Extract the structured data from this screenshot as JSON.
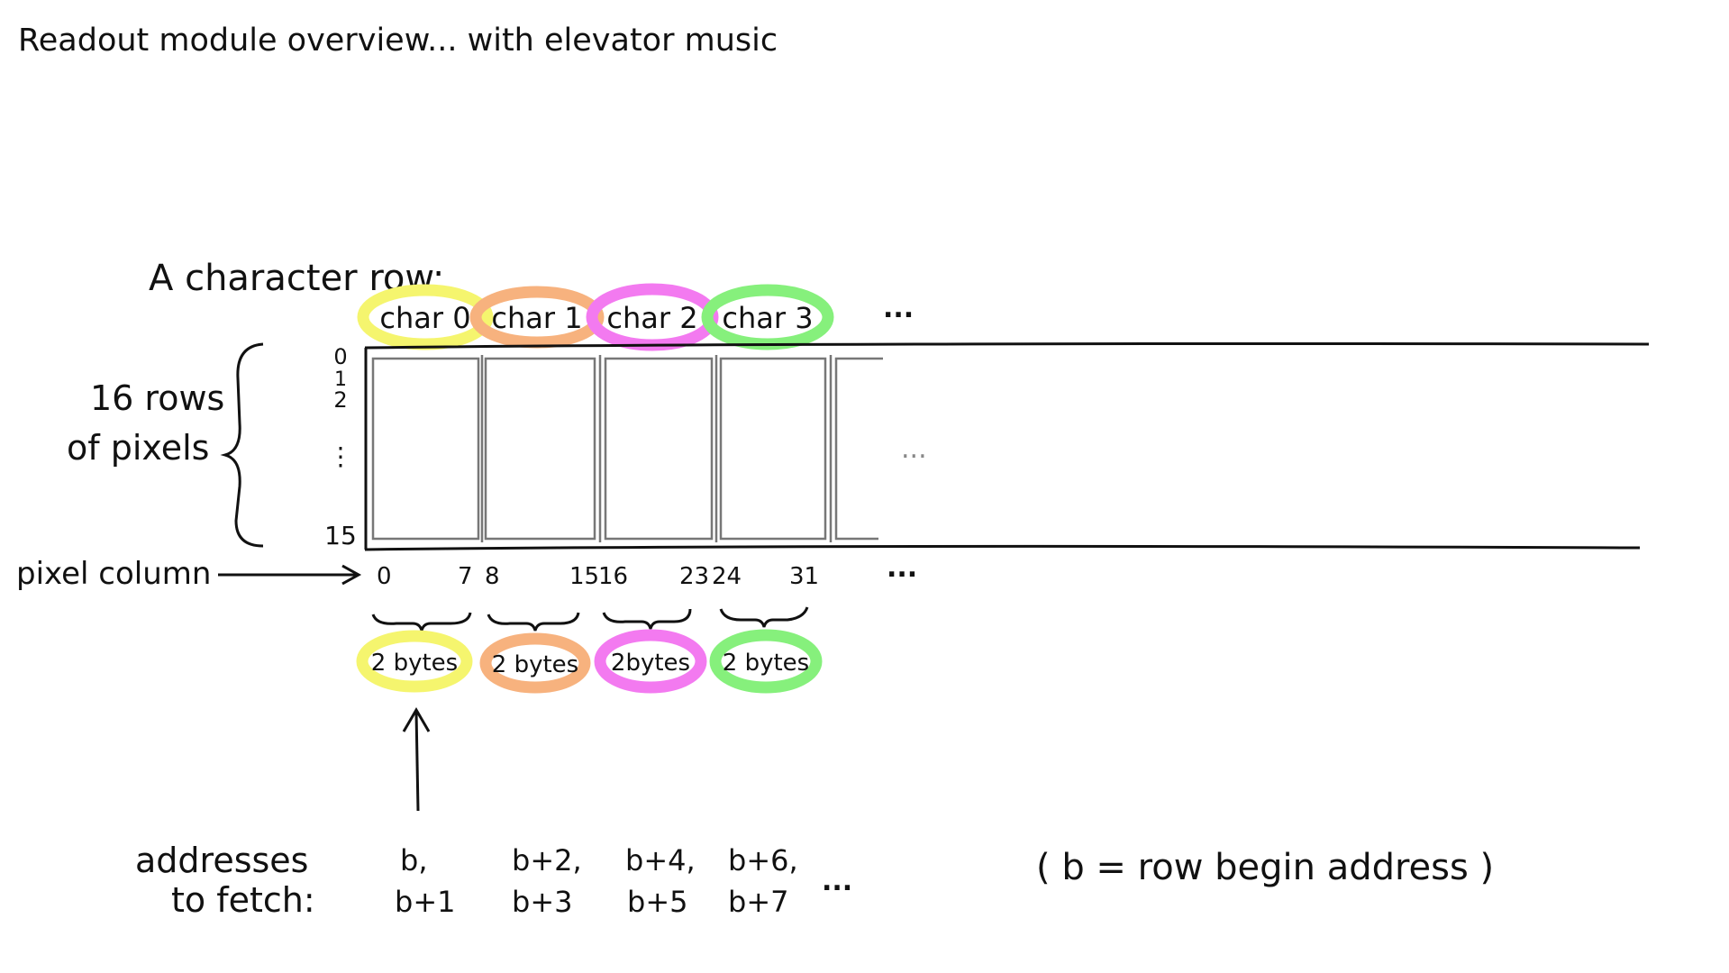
{
  "title": "Readout module overview... with elevator music",
  "row_label": "A character row:",
  "chars": [
    {
      "label": "char 0",
      "color": "#f5f56e",
      "col_start": "0",
      "col_end": "7",
      "bytes": "2 bytes",
      "addr_top": "b,",
      "addr_bottom": "b+1"
    },
    {
      "label": "char 1",
      "color": "#f7b27e",
      "col_start": "8",
      "col_end": "15",
      "bytes": "2 bytes",
      "addr_top": "b+2,",
      "addr_bottom": "b+3"
    },
    {
      "label": "char 2",
      "color": "#f37af0",
      "col_start": "16",
      "col_end": "23",
      "bytes": "2bytes",
      "addr_top": "b+4,",
      "addr_bottom": "b+5"
    },
    {
      "label": "char 3",
      "color": "#86f07c",
      "col_start": "24",
      "col_end": "31",
      "bytes": "2 bytes",
      "addr_top": "b+6,",
      "addr_bottom": "b+7"
    }
  ],
  "ellipsis": "...",
  "rows_label": {
    "line1": "16 rows",
    "line2": "of pixels"
  },
  "row_ticks": {
    "r0": "0",
    "r1": "1",
    "r2": "2",
    "dots": "⋮",
    "r15": "15"
  },
  "pixel_column_label": "pixel column",
  "addresses_label": {
    "line1": "addresses",
    "line2": "to fetch:"
  },
  "note": "( b = row begin address )"
}
